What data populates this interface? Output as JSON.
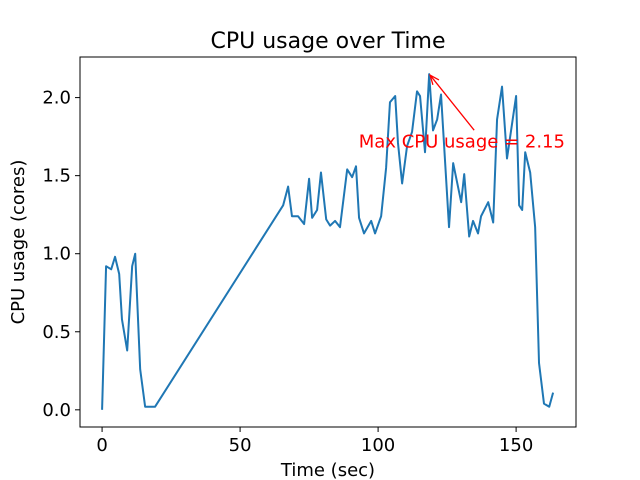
{
  "chart_data": {
    "type": "line",
    "title": "CPU usage over Time",
    "xlabel": "Time (sec)",
    "ylabel": "CPU usage (cores)",
    "xlim": [
      -8,
      171.7
    ],
    "ylim": [
      -0.11,
      2.26
    ],
    "xticks": [
      0,
      50,
      100,
      150
    ],
    "xtick_labels": [
      "0",
      "50",
      "100",
      "150"
    ],
    "yticks": [
      0,
      0.5,
      1,
      1.5,
      2
    ],
    "ytick_labels": [
      "0.0",
      "0.5",
      "1.0",
      "1.5",
      "2.0"
    ],
    "grid": false,
    "line_color": "#1f77b4",
    "x": [
      0,
      1.45,
      3.3,
      4.7,
      6.2,
      7.2,
      9.1,
      10.9,
      12,
      13.8,
      15.6,
      19.2,
      65.6,
      67.4,
      68.8,
      71.0,
      73.2,
      75.0,
      76.1,
      77.9,
      79.3,
      81.2,
      82.6,
      84.4,
      86.2,
      88.8,
      90.6,
      92.0,
      93.1,
      94.9,
      97.5,
      98.9,
      101.1,
      102.9,
      104.3,
      106.2,
      107.2,
      108.7,
      110.5,
      112.3,
      114.1,
      115.2,
      117.0,
      118.5,
      119.9,
      121.4,
      122.8,
      125.7,
      127.2,
      130.1,
      131.2,
      133.0,
      134.4,
      136.2,
      137.3,
      139.9,
      141.7,
      143.1,
      144.9,
      146.7,
      150.0,
      151.1,
      152.2,
      153.3,
      155.1,
      156.9,
      158.3,
      160.1,
      162.0,
      163.4
    ],
    "y": [
      0,
      0.92,
      0.9,
      0.98,
      0.87,
      0.58,
      0.38,
      0.92,
      1.0,
      0.26,
      0.02,
      0.02,
      1.31,
      1.43,
      1.24,
      1.24,
      1.19,
      1.48,
      1.23,
      1.28,
      1.52,
      1.22,
      1.18,
      1.21,
      1.17,
      1.54,
      1.49,
      1.56,
      1.23,
      1.13,
      1.21,
      1.13,
      1.24,
      1.55,
      1.97,
      2.01,
      1.71,
      1.45,
      1.69,
      1.78,
      2.04,
      2.01,
      1.65,
      2.15,
      1.79,
      1.86,
      2.02,
      1.17,
      1.58,
      1.33,
      1.51,
      1.11,
      1.21,
      1.13,
      1.24,
      1.33,
      1.2,
      1.86,
      2.07,
      1.61,
      2.01,
      1.31,
      1.28,
      1.65,
      1.52,
      1.17,
      0.3,
      0.04,
      0.02,
      0.11
    ],
    "annotation": {
      "text": "Max CPU usage = 2.15",
      "point": [
        118.5,
        2.15
      ],
      "text_at": [
        93,
        1.68
      ],
      "color": "#ff0000"
    }
  }
}
